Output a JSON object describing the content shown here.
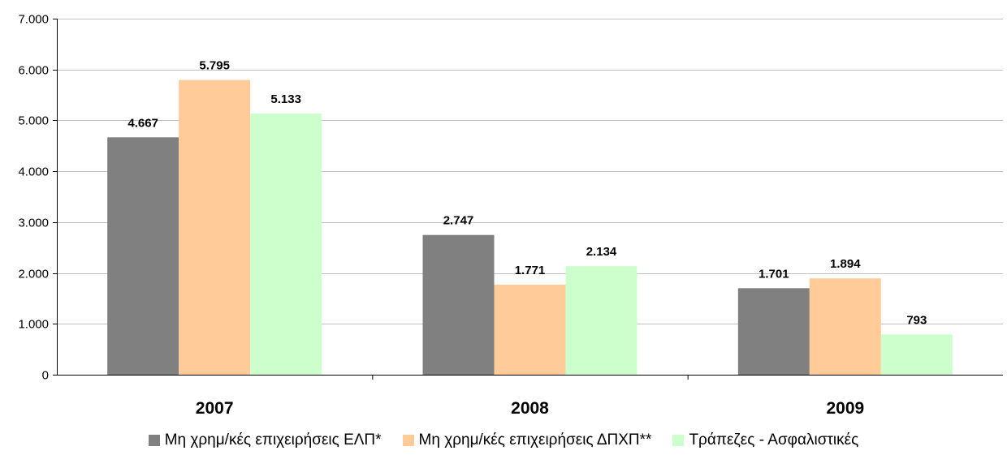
{
  "chart_data": {
    "type": "bar",
    "categories": [
      "2007",
      "2008",
      "2009"
    ],
    "series": [
      {
        "name": "Μη χρημ/κές επιχειρήσεις ΕΛΠ*",
        "values": [
          4667,
          2747,
          1701
        ],
        "value_labels": [
          "4.667",
          "2.747",
          "1.701"
        ],
        "color": "#808080"
      },
      {
        "name": "Μη χρημ/κές επιχειρήσεις ΔΠΧΠ**",
        "values": [
          5795,
          1771,
          1894
        ],
        "value_labels": [
          "5.795",
          "1.771",
          "1.894"
        ],
        "color": "#ffcc99"
      },
      {
        "name": "Τράπεζες - Ασφαλιστικές",
        "values": [
          5133,
          2134,
          793
        ],
        "value_labels": [
          "5.133",
          "2.134",
          "793"
        ],
        "color": "#ccffcc"
      }
    ],
    "ylim": [
      0,
      7000
    ],
    "y_ticks": [
      0,
      1000,
      2000,
      3000,
      4000,
      5000,
      6000,
      7000
    ],
    "y_tick_labels": [
      "0",
      "1.000",
      "2.000",
      "3.000",
      "4.000",
      "5.000",
      "6.000",
      "7.000"
    ],
    "grid": true,
    "legend_position": "bottom"
  }
}
